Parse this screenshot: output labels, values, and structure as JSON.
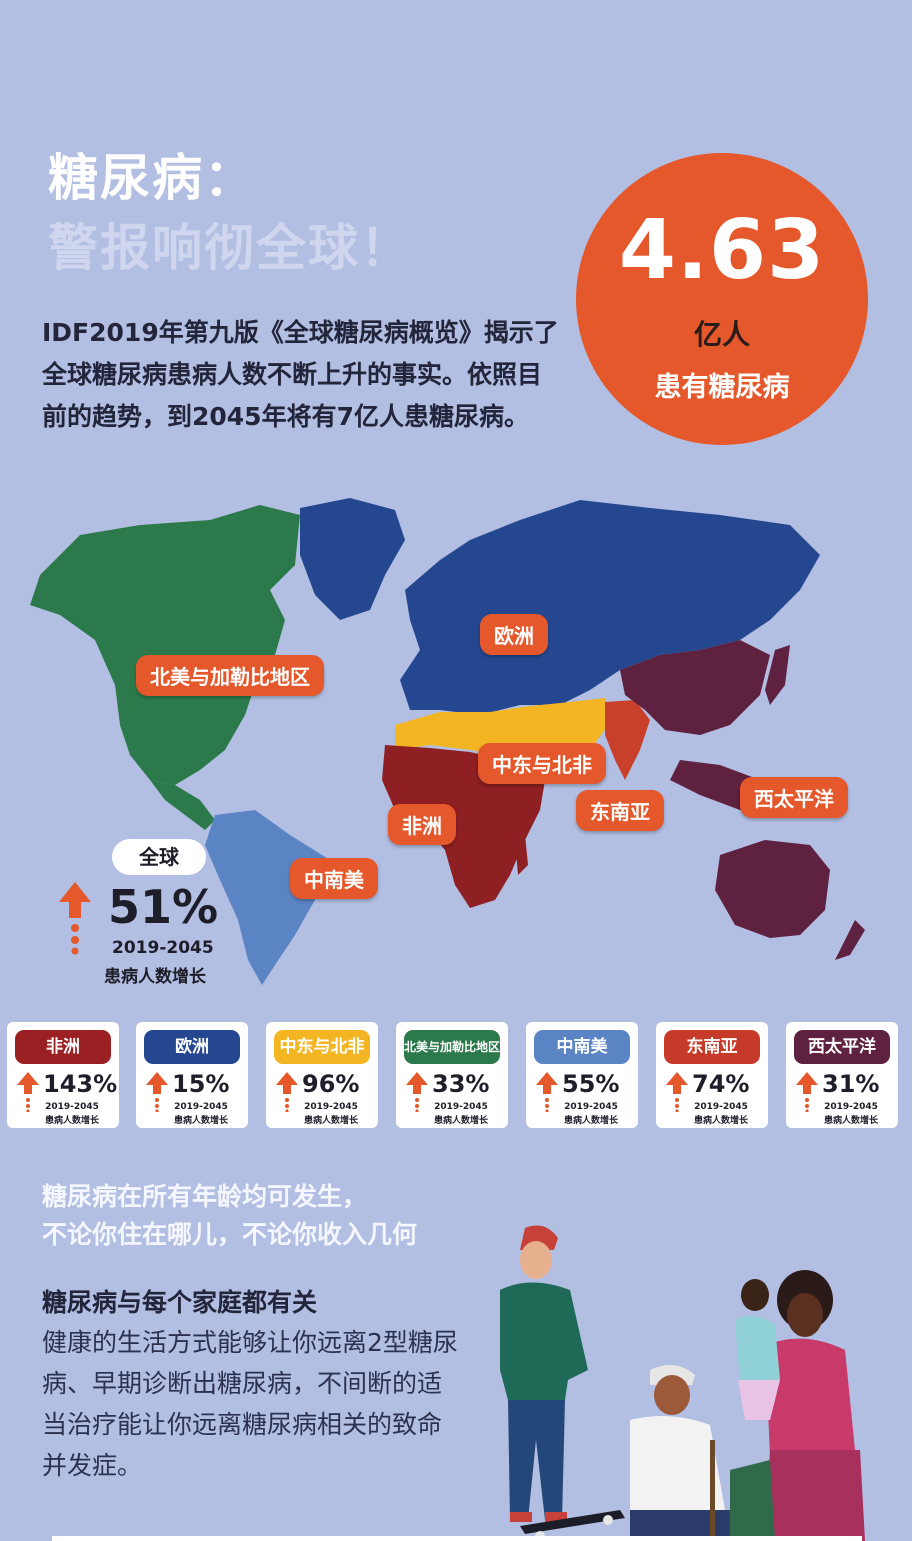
{
  "header": {
    "title_line1": "糖尿病：",
    "title_line2": "警报响彻全球！"
  },
  "intro": {
    "text": "IDF2019年第九版《全球糖尿病概览》揭示了全球糖尿病患病人数不断上升的事实。依照目前的趋势，到2045年将有7亿人患糖尿病。"
  },
  "highlight": {
    "number": "4.63",
    "unit": "亿人",
    "description": "患有糖尿病",
    "color": "#e4582b"
  },
  "map": {
    "labels": {
      "north_america": "北美与加勒比地区",
      "europe": "欧洲",
      "mena": "中东与北非",
      "africa": "非洲",
      "sea": "东南亚",
      "wp": "西太平洋",
      "sam": "中南美"
    },
    "colors": {
      "north_america": "#2c7a4b",
      "europe": "#24478f",
      "mena": "#f3b522",
      "africa": "#8e1f22",
      "sea": "#c9402a",
      "wp": "#5e2140",
      "sam": "#5b84c4"
    }
  },
  "global": {
    "label": "全球",
    "percent": "51%",
    "years": "2019-2045",
    "description": "患病人数增长"
  },
  "regions": [
    {
      "name": "非洲",
      "percent": "143%",
      "years": "2019-2045",
      "desc": "患病人数增长",
      "color": "#9b2023"
    },
    {
      "name": "欧洲",
      "percent": "15%",
      "years": "2019-2045",
      "desc": "患病人数增长",
      "color": "#24478f"
    },
    {
      "name": "中东与北非",
      "percent": "96%",
      "years": "2019-2045",
      "desc": "患病人数增长",
      "color": "#f3b522"
    },
    {
      "name": "北美与加勒比地区",
      "percent": "33%",
      "years": "2019-2045",
      "desc": "患病人数增长",
      "color": "#2c7a4b"
    },
    {
      "name": "中南美",
      "percent": "55%",
      "years": "2019-2045",
      "desc": "患病人数增长",
      "color": "#5b84c4"
    },
    {
      "name": "东南亚",
      "percent": "74%",
      "years": "2019-2045",
      "desc": "患病人数增长",
      "color": "#c63a2a"
    },
    {
      "name": "西太平洋",
      "percent": "31%",
      "years": "2019-2045",
      "desc": "患病人数增长",
      "color": "#5e2140"
    }
  ],
  "message": {
    "all_ages_line1": "糖尿病在所有年龄均可发生，",
    "all_ages_line2": "不论你住在哪儿，不论你收入几何",
    "family_heading": "糖尿病与每个家庭都有关",
    "family_text": "健康的生活方式能够让你远离2型糖尿病、早期诊断出糖尿病，不间断的适当治疗能让你远离糖尿病相关的致命并发症。"
  }
}
